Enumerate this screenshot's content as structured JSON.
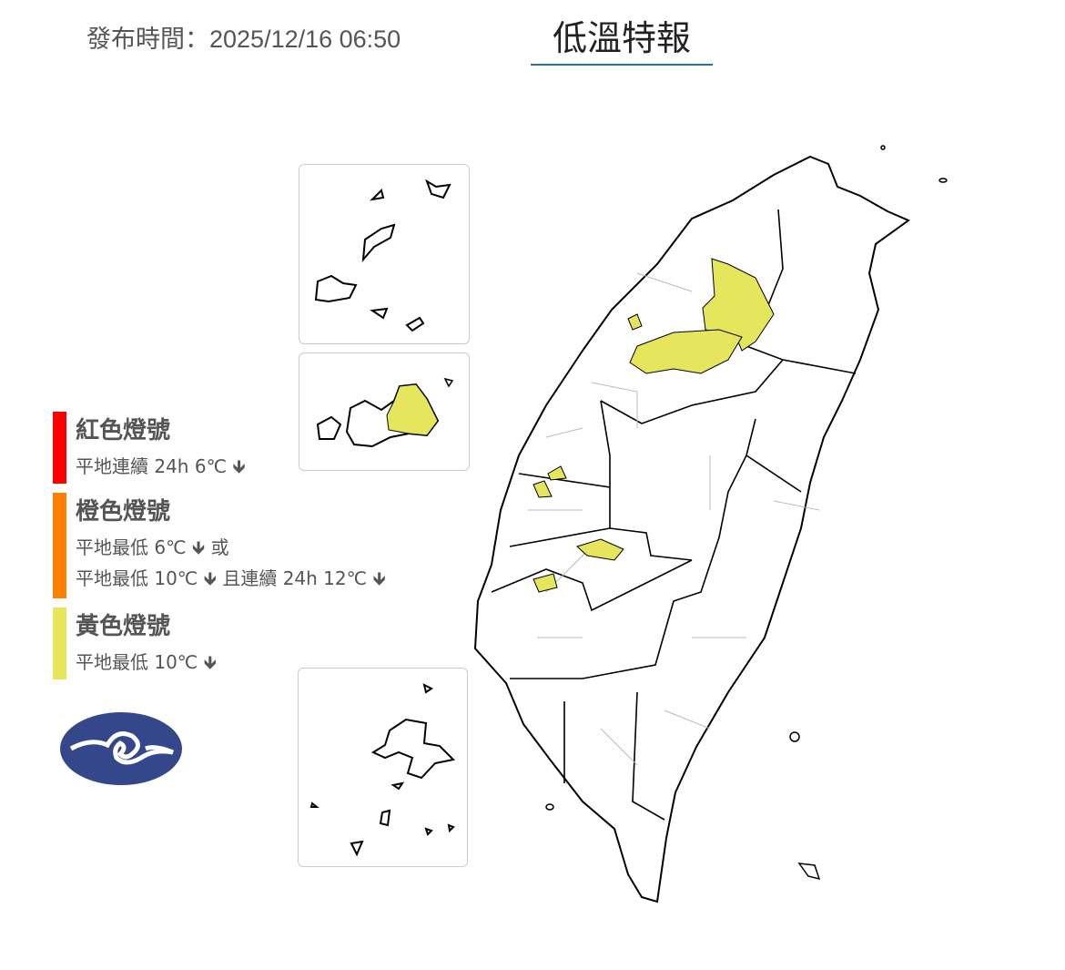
{
  "header": {
    "issued": "發布時間：2025/12/16 06:50",
    "title": "低溫特報"
  },
  "legend": [
    {
      "title": "紅色燈號",
      "lines": [
        "平地連續 24h 6℃ 🡻"
      ],
      "color": "#ff0000"
    },
    {
      "title": "橙色燈號",
      "lines": [
        "平地最低 6℃ 🡻 或",
        "平地最低 10℃ 🡻 且連續 24h 12℃ 🡻"
      ],
      "color": "#ff8000"
    },
    {
      "title": "黃色燈號",
      "lines": [
        "平地最低 10℃ 🡻"
      ],
      "color": "#e6e65c"
    }
  ],
  "map": {
    "warning_fill": "#e6e65c",
    "areas_with_yellow_warning": true
  },
  "logo": {
    "color": "#34478a",
    "name": "weather-bureau-logo"
  }
}
